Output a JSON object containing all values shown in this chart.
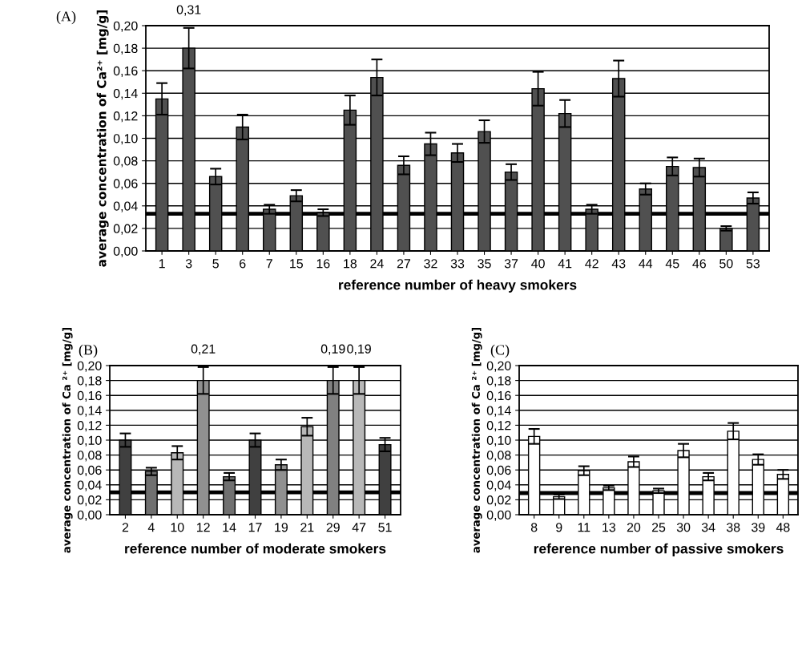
{
  "chart_data": [
    {
      "type": "bar",
      "ylabel": "average concentration of Ca²⁺ [mg/g]",
      "xlabel": "reference number of heavy smokers",
      "annotations": [
        "(A)",
        {
          "text": "0,31",
          "x": "3",
          "y": 0.198
        }
      ],
      "categories": [
        "1",
        "3",
        "5",
        "6",
        "7",
        "15",
        "16",
        "18",
        "24",
        "27",
        "32",
        "33",
        "35",
        "37",
        "40",
        "41",
        "42",
        "43",
        "44",
        "45",
        "46",
        "50",
        "53"
      ],
      "values": [
        0.135,
        0.18,
        0.066,
        0.11,
        0.037,
        0.049,
        0.034,
        0.125,
        0.154,
        0.076,
        0.095,
        0.087,
        0.106,
        0.07,
        0.144,
        0.122,
        0.037,
        0.153,
        0.055,
        0.075,
        0.074,
        0.02,
        0.047
      ],
      "errors": [
        0.014,
        0.018,
        0.007,
        0.011,
        0.004,
        0.005,
        0.003,
        0.013,
        0.016,
        0.008,
        0.01,
        0.008,
        0.01,
        0.007,
        0.015,
        0.012,
        0.004,
        0.016,
        0.005,
        0.008,
        0.008,
        0.002,
        0.005
      ],
      "color": "#505050",
      "ylim": [
        0,
        0.2
      ],
      "yticks": [
        {
          "value": 0,
          "label": "0,00"
        },
        {
          "value": 0.02,
          "label": "0,02"
        },
        {
          "value": 0.04,
          "label": "0,04"
        },
        {
          "value": 0.06,
          "label": "0,06"
        },
        {
          "value": 0.08,
          "label": "0,08"
        },
        {
          "value": 0.1,
          "label": "0,10"
        },
        {
          "value": 0.12,
          "label": "0,12"
        },
        {
          "value": 0.14,
          "label": "0,14"
        },
        {
          "value": 0.16,
          "label": "0,16"
        },
        {
          "value": 0.18,
          "label": "0,18"
        },
        {
          "value": 0.2,
          "label": "0,20"
        }
      ],
      "ref_lines": [
        {
          "axis": "y",
          "value": 0.033,
          "color": "#000000"
        }
      ],
      "grid": "y"
    },
    {
      "type": "bar",
      "ylabel": "average concentration of Ca ²⁺ [mg/g]",
      "xlabel": "reference number of moderate smokers",
      "annotations": [
        "(B)",
        {
          "text": "0,21",
          "x": "12",
          "y": 0.198
        },
        {
          "text": "0,19",
          "x": "29",
          "y": 0.198
        },
        {
          "text": "0,19",
          "x": "47",
          "y": 0.198
        }
      ],
      "categories": [
        "2",
        "4",
        "10",
        "12",
        "14",
        "17",
        "19",
        "21",
        "29",
        "47",
        "51"
      ],
      "values": [
        0.1,
        0.058,
        0.083,
        0.18,
        0.051,
        0.1,
        0.067,
        0.118,
        0.18,
        0.18,
        0.094
      ],
      "errors": [
        0.009,
        0.005,
        0.009,
        0.018,
        0.005,
        0.009,
        0.007,
        0.012,
        0.018,
        0.018,
        0.009
      ],
      "colors": [
        "#404040",
        "#707070",
        "#b8b8b8",
        "#909090",
        "#707070",
        "#404040",
        "#909090",
        "#b8b8b8",
        "#808080",
        "#b8b8b8",
        "#404040"
      ],
      "ylim": [
        0,
        0.2
      ],
      "yticks": [
        {
          "value": 0,
          "label": "0,00"
        },
        {
          "value": 0.02,
          "label": "0,02"
        },
        {
          "value": 0.04,
          "label": "0,04"
        },
        {
          "value": 0.06,
          "label": "0,06"
        },
        {
          "value": 0.08,
          "label": "0,08"
        },
        {
          "value": 0.1,
          "label": "0,10"
        },
        {
          "value": 0.12,
          "label": "0,12"
        },
        {
          "value": 0.14,
          "label": "0,14"
        },
        {
          "value": 0.16,
          "label": "0,16"
        },
        {
          "value": 0.18,
          "label": "0,18"
        },
        {
          "value": 0.2,
          "label": "0,20"
        }
      ],
      "ref_lines": [
        {
          "axis": "y",
          "value": 0.03,
          "color": "#000000"
        }
      ],
      "grid": "y"
    },
    {
      "type": "bar",
      "ylabel": "average concentration of Ca ²⁺ [mg/g]",
      "xlabel": "reference number of passive smokers",
      "annotations": [
        "(C)"
      ],
      "categories": [
        "8",
        "9",
        "11",
        "13",
        "20",
        "25",
        "30",
        "34",
        "38",
        "39",
        "48"
      ],
      "values": [
        0.105,
        0.024,
        0.059,
        0.036,
        0.071,
        0.032,
        0.086,
        0.051,
        0.112,
        0.074,
        0.054
      ],
      "errors": [
        0.01,
        0.003,
        0.006,
        0.003,
        0.007,
        0.003,
        0.009,
        0.005,
        0.011,
        0.007,
        0.006
      ],
      "color": "#ffffff",
      "ylim": [
        0,
        0.2
      ],
      "yticks": [
        {
          "value": 0,
          "label": "0,00"
        },
        {
          "value": 0.02,
          "label": "0,02"
        },
        {
          "value": 0.04,
          "label": "0,04"
        },
        {
          "value": 0.06,
          "label": "0,06"
        },
        {
          "value": 0.08,
          "label": "0,08"
        },
        {
          "value": 0.1,
          "label": "0,10"
        },
        {
          "value": 0.12,
          "label": "0,12"
        },
        {
          "value": 0.14,
          "label": "0,14"
        },
        {
          "value": 0.16,
          "label": "0,16"
        },
        {
          "value": 0.18,
          "label": "0,18"
        },
        {
          "value": 0.2,
          "label": "0,20"
        }
      ],
      "ref_lines": [
        {
          "axis": "y",
          "value": 0.029,
          "color": "#000000"
        }
      ],
      "grid": "y"
    }
  ]
}
